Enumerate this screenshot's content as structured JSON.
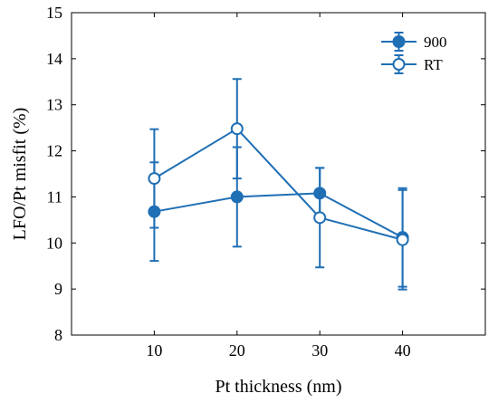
{
  "chart_data": {
    "type": "line",
    "xlabel": "Pt thickness (nm)",
    "ylabel": "LFO/Pt misfit (%)",
    "xlim": [
      0,
      50
    ],
    "ylim": [
      8,
      15
    ],
    "xticks": [
      10,
      20,
      30,
      40
    ],
    "yticks": [
      8,
      9,
      10,
      11,
      12,
      13,
      14,
      15
    ],
    "grid": false,
    "legend_position": "top-right",
    "series": [
      {
        "name": "900",
        "marker": "filled-circle",
        "color": "#1f6fb5",
        "x": [
          10,
          20,
          30,
          40
        ],
        "y": [
          10.68,
          11.0,
          11.08,
          10.12
        ],
        "err": [
          1.07,
          1.08,
          0.55,
          1.07
        ]
      },
      {
        "name": "RT",
        "marker": "open-circle",
        "color": "#1f6fb5",
        "x": [
          10,
          20,
          30,
          40
        ],
        "y": [
          11.4,
          12.48,
          10.55,
          10.07
        ],
        "err": [
          1.07,
          1.08,
          1.08,
          1.08
        ]
      }
    ]
  }
}
